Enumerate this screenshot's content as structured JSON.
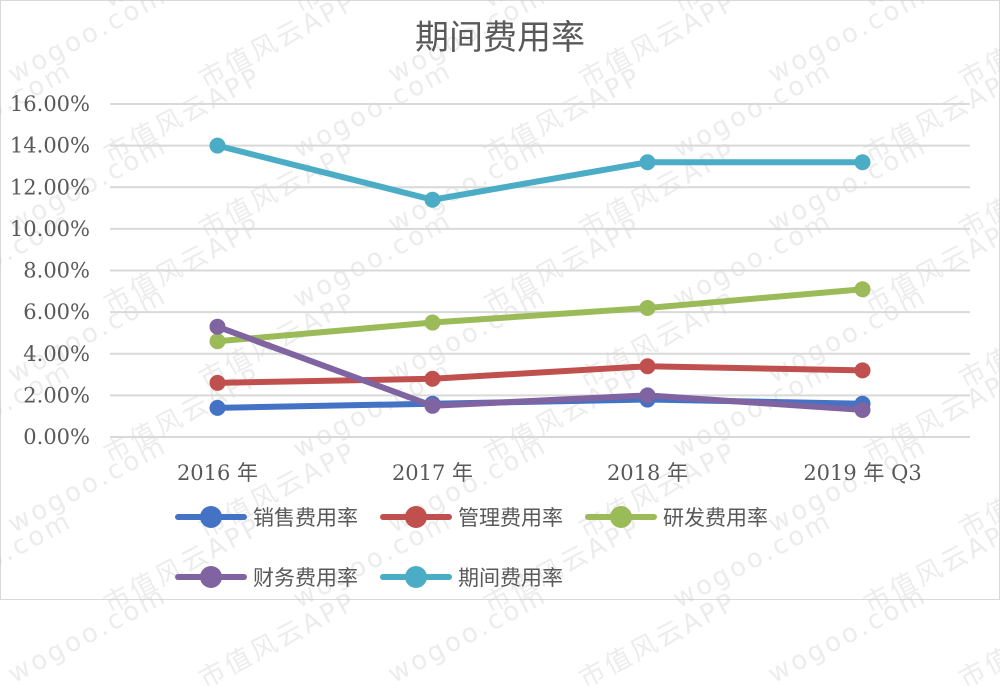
{
  "chart_data": {
    "type": "line",
    "title": "期间费用率",
    "xlabel": "",
    "ylabel": "",
    "categories": [
      "2016 年",
      "2017 年",
      "2018 年",
      "2019 年 Q3"
    ],
    "ylim": [
      0,
      16
    ],
    "yticks": [
      "0.00%",
      "2.00%",
      "4.00%",
      "6.00%",
      "8.00%",
      "10.00%",
      "12.00%",
      "14.00%",
      "16.00%"
    ],
    "grid": true,
    "legend_position": "bottom",
    "series": [
      {
        "name": "销售费用率",
        "color": "#4472c4",
        "values": [
          1.4,
          1.6,
          1.8,
          1.6
        ]
      },
      {
        "name": "管理费用率",
        "color": "#c0504d",
        "values": [
          2.6,
          2.8,
          3.4,
          3.2
        ]
      },
      {
        "name": "研发费用率",
        "color": "#9bbb59",
        "values": [
          4.6,
          5.5,
          6.2,
          7.1
        ]
      },
      {
        "name": "财务费用率",
        "color": "#8064a2",
        "values": [
          5.3,
          1.5,
          2.0,
          1.3
        ]
      },
      {
        "name": "期间费用率",
        "color": "#4bacc6",
        "values": [
          14.0,
          11.4,
          13.2,
          13.2
        ]
      }
    ]
  },
  "watermark": {
    "texts": [
      "wogoo.com",
      "市值风云APP"
    ]
  }
}
